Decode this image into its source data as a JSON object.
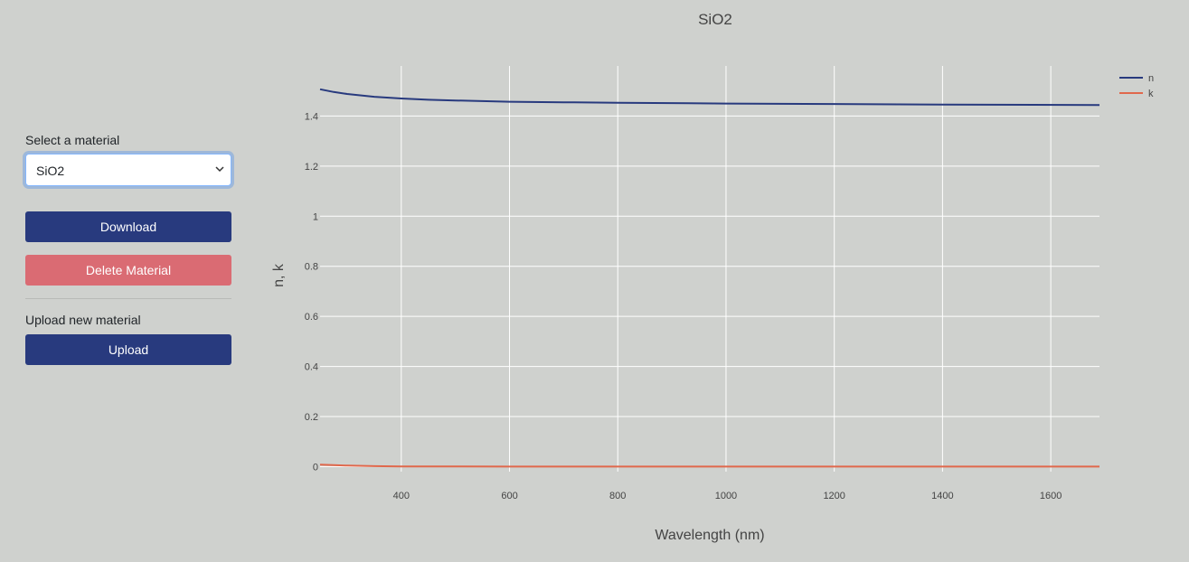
{
  "sidebar": {
    "select_label": "Select a material",
    "selected_material": "SiO2",
    "download_label": "Download",
    "delete_label": "Delete Material",
    "upload_heading": "Upload new material",
    "upload_label": "Upload"
  },
  "colors": {
    "primary_button": "#283a7e",
    "danger_button": "#da6b73",
    "series_n": "#283a7e",
    "series_k": "#e0684c"
  },
  "chart_data": {
    "type": "line",
    "title": "SiO2",
    "xlabel": "Wavelength (nm)",
    "ylabel": "n, k",
    "xlim": [
      250,
      1690
    ],
    "ylim": [
      -0.02,
      1.6
    ],
    "x_ticks": [
      400,
      600,
      800,
      1000,
      1200,
      1400,
      1600
    ],
    "y_ticks": [
      0,
      0.2,
      0.4,
      0.6,
      0.8,
      1,
      1.2,
      1.4
    ],
    "grid": true,
    "legend_position": "top-right",
    "series": [
      {
        "name": "n",
        "x": [
          250,
          275,
          300,
          350,
          400,
          450,
          500,
          600,
          700,
          800,
          1000,
          1200,
          1400,
          1690
        ],
        "y": [
          1.507,
          1.496,
          1.488,
          1.477,
          1.47,
          1.465,
          1.462,
          1.457,
          1.455,
          1.453,
          1.45,
          1.448,
          1.446,
          1.444
        ]
      },
      {
        "name": "k",
        "x": [
          250,
          275,
          300,
          350,
          400,
          500,
          600,
          800,
          1000,
          1400,
          1690
        ],
        "y": [
          0.008,
          0.006,
          0.004,
          0.002,
          0.001,
          0.0005,
          0.0003,
          0.0002,
          0.0001,
          0.0001,
          0.0001
        ]
      }
    ]
  }
}
